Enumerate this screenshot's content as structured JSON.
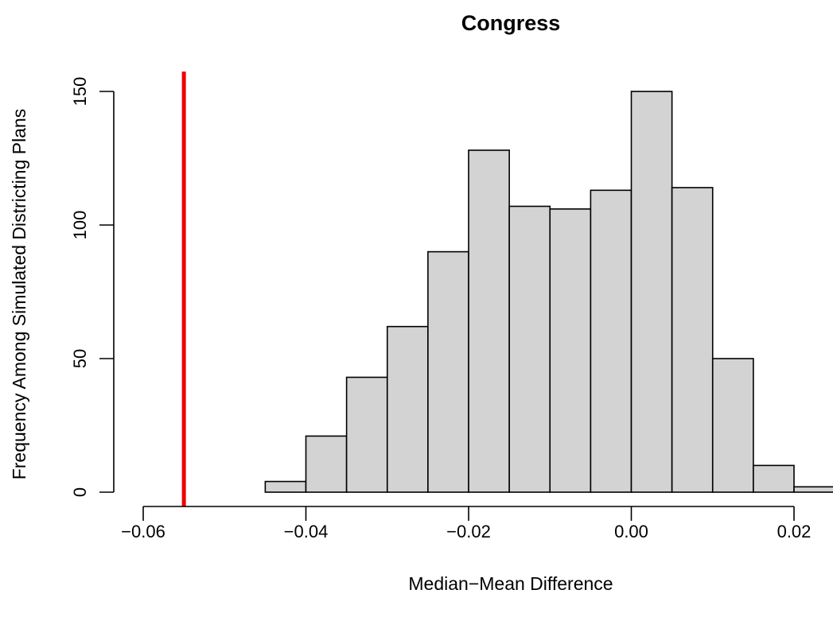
{
  "chart_data": {
    "type": "bar",
    "subtype": "histogram",
    "title": "Congress",
    "xlabel": "Median−Mean Difference",
    "ylabel": "Frequency Among Simulated Districting Plans",
    "xlim": [
      -0.06,
      0.025
    ],
    "ylim": [
      0,
      150
    ],
    "x_ticks": [
      -0.06,
      -0.04,
      -0.02,
      0.0,
      0.02
    ],
    "x_tick_labels": [
      "−0.06",
      "−0.04",
      "−0.02",
      "0.00",
      "0.02"
    ],
    "y_ticks": [
      0,
      50,
      100,
      150
    ],
    "y_tick_labels": [
      "0",
      "50",
      "100",
      "150"
    ],
    "bin_width": 0.005,
    "bins": [
      {
        "x0": -0.045,
        "x1": -0.04,
        "count": 4
      },
      {
        "x0": -0.04,
        "x1": -0.035,
        "count": 21
      },
      {
        "x0": -0.035,
        "x1": -0.03,
        "count": 43
      },
      {
        "x0": -0.03,
        "x1": -0.025,
        "count": 62
      },
      {
        "x0": -0.025,
        "x1": -0.02,
        "count": 90
      },
      {
        "x0": -0.02,
        "x1": -0.015,
        "count": 128
      },
      {
        "x0": -0.015,
        "x1": -0.01,
        "count": 107
      },
      {
        "x0": -0.01,
        "x1": -0.005,
        "count": 106
      },
      {
        "x0": -0.005,
        "x1": 0.0,
        "count": 113
      },
      {
        "x0": 0.0,
        "x1": 0.005,
        "count": 150
      },
      {
        "x0": 0.005,
        "x1": 0.01,
        "count": 114
      },
      {
        "x0": 0.01,
        "x1": 0.015,
        "count": 50
      },
      {
        "x0": 0.015,
        "x1": 0.02,
        "count": 10
      },
      {
        "x0": 0.02,
        "x1": 0.025,
        "count": 2
      }
    ],
    "reference_line": {
      "x": -0.055,
      "color": "#ee0000"
    },
    "bar_fill": "#d3d3d3",
    "bar_stroke": "#000000",
    "grid": false,
    "legend": "none"
  }
}
